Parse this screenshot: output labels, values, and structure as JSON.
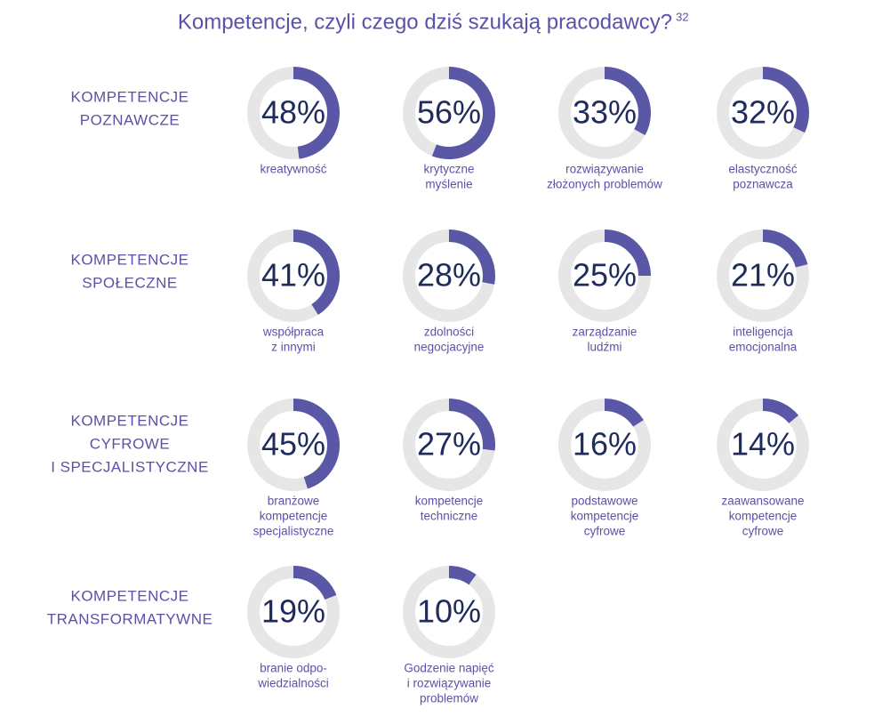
{
  "title": "Kompetencje, czyli czego dziś szukają pracodawcy?",
  "footnote": "32",
  "colors": {
    "ring": "#5a58a6",
    "track": "#e6e6e6",
    "text": "#5a52a8",
    "number": "#1e2b5c"
  },
  "groups": [
    {
      "label": [
        "KOMPETENCJE",
        "POZNAWCZE"
      ],
      "items": [
        {
          "value": 48,
          "value_label": "48%",
          "label": [
            "kreatywność"
          ]
        },
        {
          "value": 56,
          "value_label": "56%",
          "label": [
            "krytyczne",
            "myślenie"
          ]
        },
        {
          "value": 33,
          "value_label": "33%",
          "label": [
            "rozwiązywanie",
            "złożonych problemów"
          ]
        },
        {
          "value": 32,
          "value_label": "32%",
          "label": [
            "elastyczność",
            "poznawcza"
          ]
        }
      ]
    },
    {
      "label": [
        "KOMPETENCJE",
        "SPOŁECZNE"
      ],
      "items": [
        {
          "value": 41,
          "value_label": "41%",
          "label": [
            "współpraca",
            "z innymi"
          ]
        },
        {
          "value": 28,
          "value_label": "28%",
          "label": [
            "zdolności",
            "negocjacyjne"
          ]
        },
        {
          "value": 25,
          "value_label": "25%",
          "label": [
            "zarządzanie",
            "ludźmi"
          ]
        },
        {
          "value": 21,
          "value_label": "21%",
          "label": [
            "inteligencja",
            "emocjonalna"
          ]
        }
      ]
    },
    {
      "label": [
        "KOMPETENCJE",
        "CYFROWE",
        "I SPECJALISTYCZNE"
      ],
      "items": [
        {
          "value": 45,
          "value_label": "45%",
          "label": [
            "branżowe",
            "kompetencje",
            "specjalistyczne"
          ]
        },
        {
          "value": 27,
          "value_label": "27%",
          "label": [
            "kompetencje",
            "techniczne"
          ]
        },
        {
          "value": 16,
          "value_label": "16%",
          "label": [
            "podstawowe",
            "kompetencje",
            "cyfrowe"
          ]
        },
        {
          "value": 14,
          "value_label": "14%",
          "label": [
            "zaawansowane",
            "kompetencje",
            "cyfrowe"
          ]
        }
      ]
    },
    {
      "label": [
        "KOMPETENCJE",
        "TRANSFORMATYWNE"
      ],
      "items": [
        {
          "value": 19,
          "value_label": "19%",
          "label": [
            "branie odpo-",
            "wiedzialności"
          ]
        },
        {
          "value": 10,
          "value_label": "10%",
          "label": [
            "Godzenie napięć",
            "i rozwiązywanie",
            "problemów"
          ]
        }
      ]
    }
  ]
}
